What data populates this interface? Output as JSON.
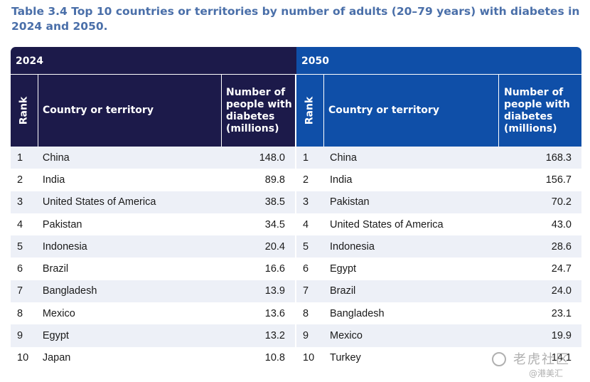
{
  "title": "Table 3.4 Top 10 countries or territories by number of adults (20–79 years) with diabetes in 2024 and 2050.",
  "headers": {
    "rank": "Rank",
    "country": "Country or territory",
    "number": "Number of people with diabetes (millions)"
  },
  "table_2024": {
    "year": "2024",
    "rows": [
      {
        "rank": "1",
        "country": "China",
        "value": "148.0"
      },
      {
        "rank": "2",
        "country": "India",
        "value": "89.8"
      },
      {
        "rank": "3",
        "country": "United States of America",
        "value": "38.5"
      },
      {
        "rank": "4",
        "country": "Pakistan",
        "value": "34.5"
      },
      {
        "rank": "5",
        "country": "Indonesia",
        "value": "20.4"
      },
      {
        "rank": "6",
        "country": "Brazil",
        "value": "16.6"
      },
      {
        "rank": "7",
        "country": "Bangladesh",
        "value": "13.9"
      },
      {
        "rank": "8",
        "country": "Mexico",
        "value": "13.6"
      },
      {
        "rank": "9",
        "country": "Egypt",
        "value": "13.2"
      },
      {
        "rank": "10",
        "country": "Japan",
        "value": "10.8"
      }
    ]
  },
  "table_2050": {
    "year": "2050",
    "rows": [
      {
        "rank": "1",
        "country": "China",
        "value": "168.3"
      },
      {
        "rank": "2",
        "country": "India",
        "value": "156.7"
      },
      {
        "rank": "3",
        "country": "Pakistan",
        "value": "70.2"
      },
      {
        "rank": "4",
        "country": "United States of America",
        "value": "43.0"
      },
      {
        "rank": "5",
        "country": "Indonesia",
        "value": "28.6"
      },
      {
        "rank": "6",
        "country": "Egypt",
        "value": "24.7"
      },
      {
        "rank": "7",
        "country": "Brazil",
        "value": "24.0"
      },
      {
        "rank": "8",
        "country": "Bangladesh",
        "value": "23.1"
      },
      {
        "rank": "9",
        "country": "Mexico",
        "value": "19.9"
      },
      {
        "rank": "10",
        "country": "Turkey",
        "value": "14.1"
      }
    ]
  },
  "watermark": {
    "top": "老虎社区",
    "bottom": "@港美汇"
  },
  "colors": {
    "title": "#4a6fa9",
    "header_2024": "#1c1a4a",
    "header_2050": "#0f4fa8",
    "row_stripe": "#edf0f7"
  }
}
